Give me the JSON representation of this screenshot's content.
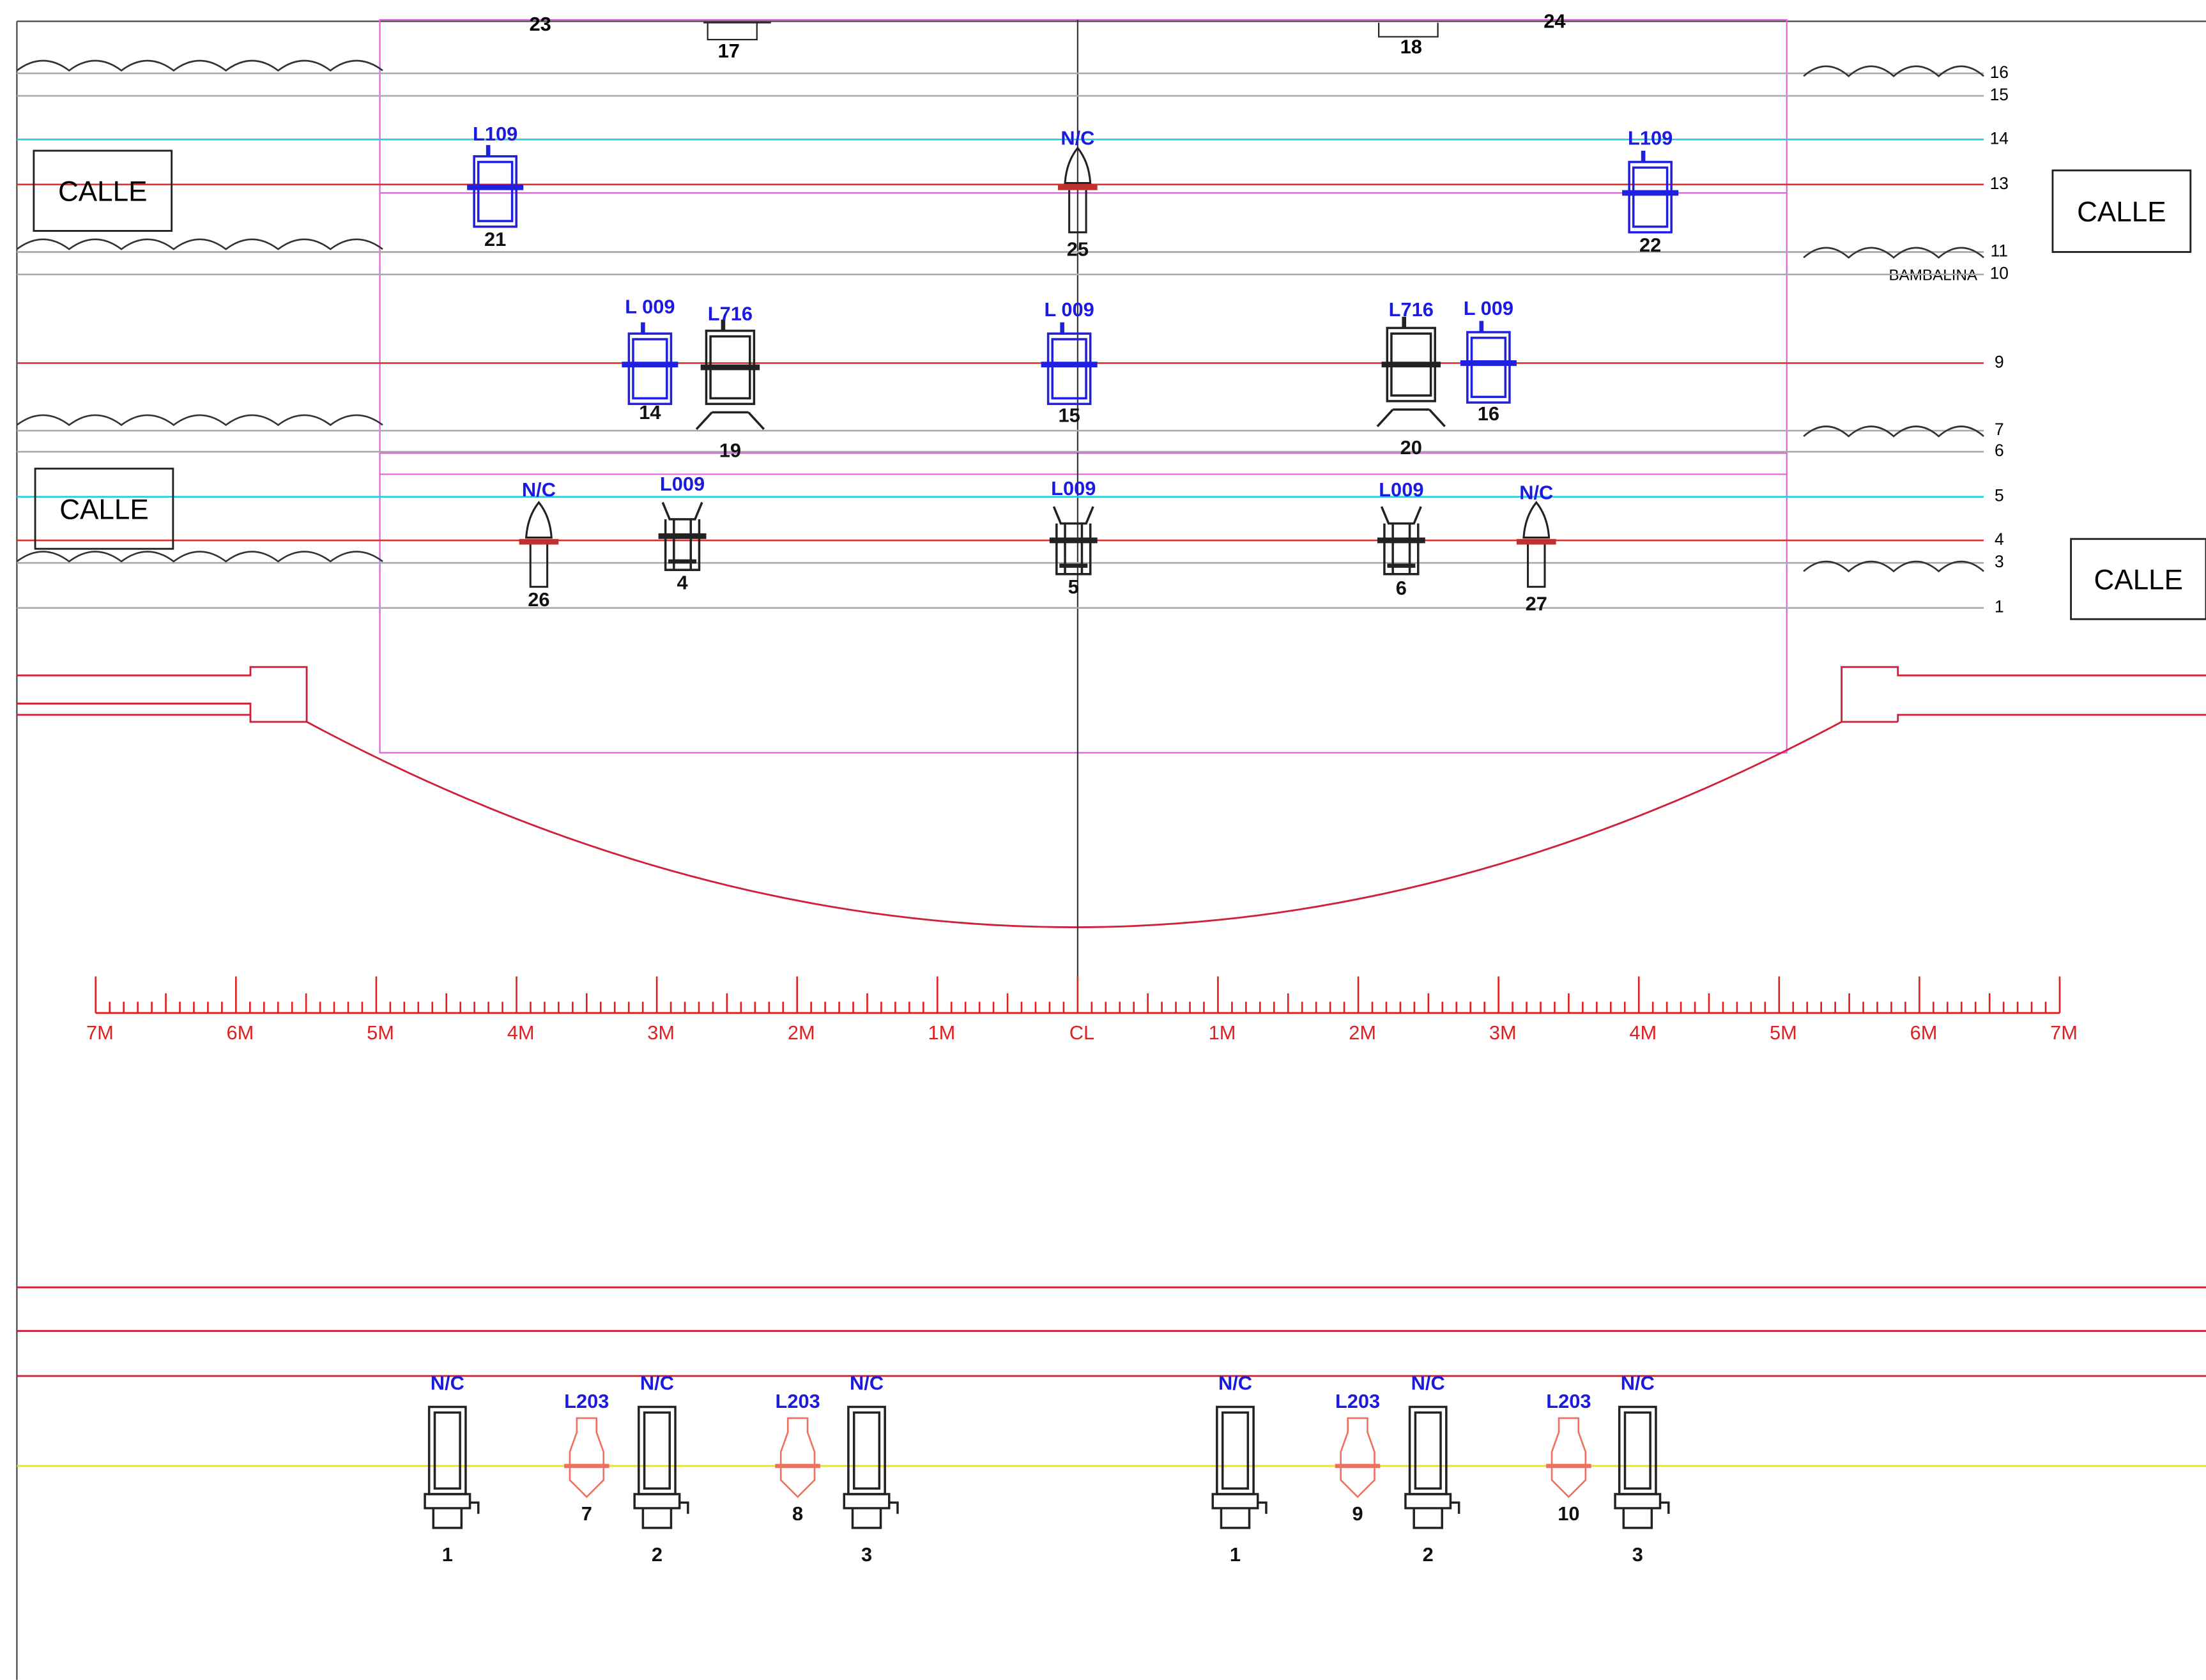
{
  "top_numbers": [
    "23",
    "17",
    "18",
    "24"
  ],
  "line_numbers": [
    "16",
    "15",
    "14",
    "13",
    "11",
    "10",
    "9",
    "7",
    "6",
    "5",
    "4",
    "3",
    "1"
  ],
  "bambalina": "BAMBALINA",
  "calle": [
    "CALLE",
    "CALLE",
    "CALLE",
    "CALLE"
  ],
  "fixtures": [
    {
      "label": "L109",
      "number": "21"
    },
    {
      "label": "N/C",
      "number": "25"
    },
    {
      "label": "L109",
      "number": "22"
    },
    {
      "label": "L 009",
      "number": "14"
    },
    {
      "label": "L716",
      "number": "19"
    },
    {
      "label": "L 009",
      "number": "15"
    },
    {
      "label": "L716",
      "number": "20"
    },
    {
      "label": "L 009",
      "number": "16"
    },
    {
      "label": "N/C",
      "number": "26"
    },
    {
      "label": "L009",
      "number": "4"
    },
    {
      "label": "L009",
      "number": "5"
    },
    {
      "label": "L009",
      "number": "6"
    },
    {
      "label": "N/C",
      "number": "27"
    }
  ],
  "scale": [
    "7M",
    "6M",
    "5M",
    "4M",
    "3M",
    "2M",
    "1M",
    "CL",
    "1M",
    "2M",
    "3M",
    "4M",
    "5M",
    "6M",
    "7M"
  ],
  "floor_fixtures": [
    {
      "label": "N/C",
      "number": "1"
    },
    {
      "label": "L203",
      "number": "7"
    },
    {
      "label": "N/C",
      "number": "2"
    },
    {
      "label": "L203",
      "number": "8"
    },
    {
      "label": "N/C",
      "number": "3"
    },
    {
      "label": "N/C",
      "number": "1"
    },
    {
      "label": "L203",
      "number": "9"
    },
    {
      "label": "N/C",
      "number": "2"
    },
    {
      "label": "L203",
      "number": "10"
    },
    {
      "label": "N/C",
      "number": "3"
    }
  ]
}
